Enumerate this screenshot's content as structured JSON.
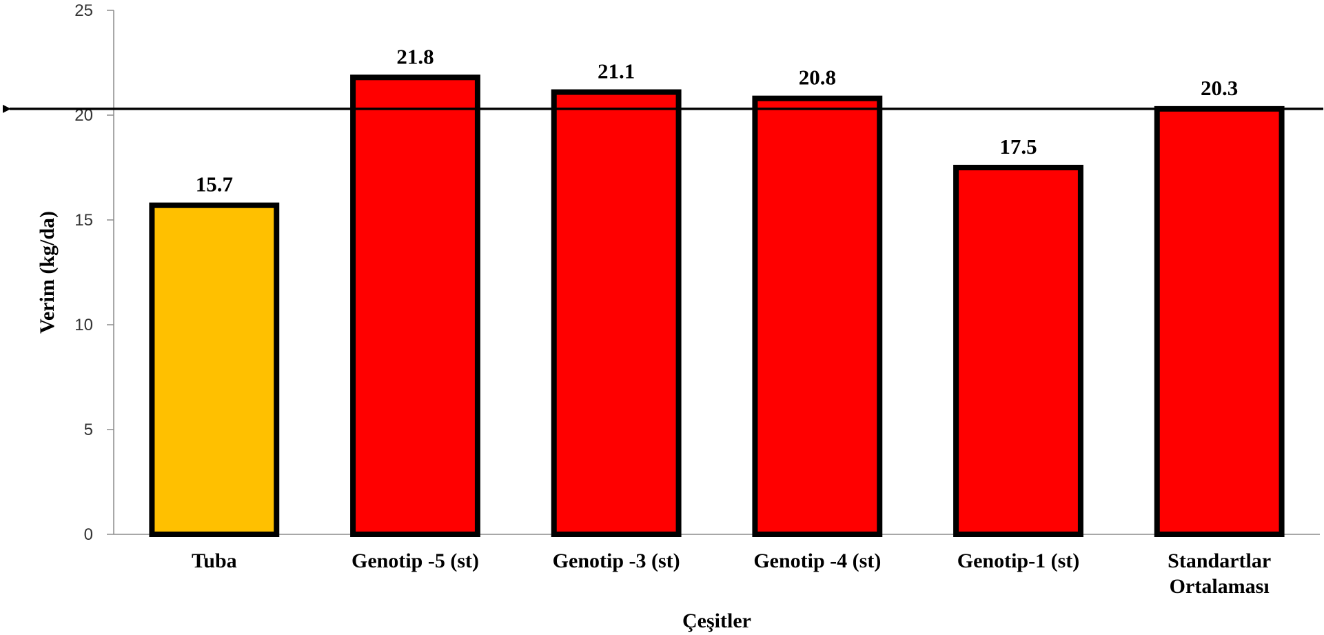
{
  "chart_data": {
    "type": "bar",
    "title": "",
    "xlabel": "Çeşitler",
    "ylabel": "Verim (kg/da)",
    "ylim": [
      0,
      25
    ],
    "yticks": [
      0,
      5,
      10,
      15,
      20,
      25
    ],
    "categories": [
      [
        "Tuba"
      ],
      [
        "Genotip -5 (st)"
      ],
      [
        "Genotip -3 (st)"
      ],
      [
        "Genotip -4 (st)"
      ],
      [
        "Genotip-1 (st)"
      ],
      [
        "Standartlar",
        "Ortalaması"
      ]
    ],
    "values": [
      15.7,
      21.8,
      21.1,
      20.8,
      17.5,
      20.3
    ],
    "value_labels": [
      "15.7",
      "21.8",
      "21.1",
      "20.8",
      "17.5",
      "20.3"
    ],
    "bar_colors": [
      "#FFC000",
      "#FF0000",
      "#FF0000",
      "#FF0000",
      "#FF0000",
      "#FF0000"
    ],
    "bar_outline_color": "#000000",
    "reference_line": {
      "value": 20.3,
      "arrow": "left",
      "color": "#000000"
    },
    "grid": false,
    "legend": "none"
  }
}
